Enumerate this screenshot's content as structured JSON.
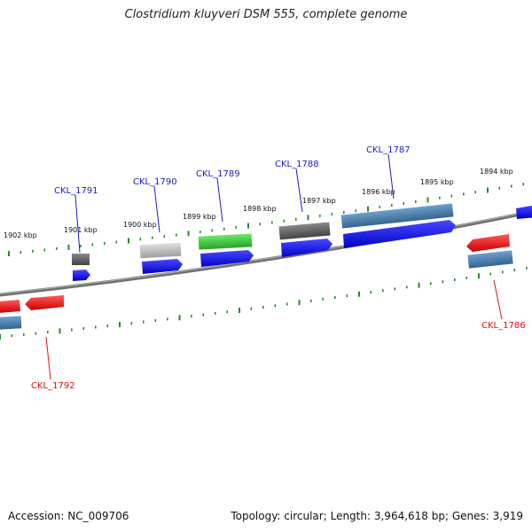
{
  "title": "Clostridium kluyveri DSM 555, complete genome",
  "accession": "Accession: NC_009706",
  "topology": "circular",
  "length": "3,964,618 bp",
  "genes": "3,919",
  "summary_labels": {
    "topology": "Topology:",
    "length": "Length:",
    "genes": "Genes:"
  },
  "kbp_labels": [
    "1902 kbp",
    "1901 kbp",
    "1900 kbp",
    "1899 kbp",
    "1898 kbp",
    "1897 kbp",
    "1896 kbp",
    "1895 kbp",
    "1894 kbp"
  ],
  "gene_labels": [
    {
      "id": "CKL_1791",
      "strand": "forward"
    },
    {
      "id": "CKL_1790",
      "strand": "forward"
    },
    {
      "id": "CKL_1789",
      "strand": "forward"
    },
    {
      "id": "CKL_1788",
      "strand": "forward"
    },
    {
      "id": "CKL_1787",
      "strand": "forward"
    },
    {
      "id": "CKL_1786",
      "strand": "reverse"
    },
    {
      "id": "CKL_1792",
      "strand": "reverse"
    }
  ],
  "colors": {
    "forward_label": "#1a1ad0",
    "reverse_label": "#e01010",
    "cds_forward": "#0a0ae6",
    "cds_reverse": "#ee1111",
    "gene_steel": "#4a80b4",
    "gene_dark": "#666666",
    "gene_light": "#bcbcbc",
    "gene_green": "#3ec83e",
    "tick": "#2a8a2a",
    "backbone": "#7a7a7a"
  }
}
